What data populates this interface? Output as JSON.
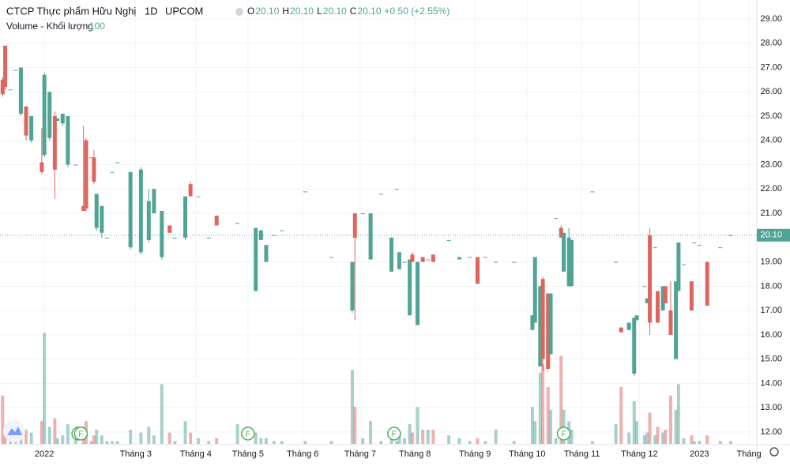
{
  "chart_data": {
    "type": "candlestick",
    "title": "CTCP Thực phẩm Hữu Nghị",
    "interval": "1D",
    "exchange": "UPCOM",
    "ohlc_legend": [
      {
        "key": "O",
        "label": "20.10"
      },
      {
        "key": "H",
        "label": "20.10"
      },
      {
        "key": "L",
        "label": "20.10"
      },
      {
        "key": "C",
        "label": "20.10"
      }
    ],
    "change": "+0.50 (+2.55%)",
    "volume_label": "Volume - Khối lượng",
    "volume_length": "100",
    "up_color": "#4fa496",
    "down_color": "#e0645c",
    "grid": true,
    "xlim": [
      0,
      290
    ],
    "ylim": [
      11.25,
      29.78
    ],
    "vlim": [
      0,
      100
    ],
    "yticks": [
      {
        "value": 12,
        "label": "12.00"
      },
      {
        "value": 13,
        "label": "13.00"
      },
      {
        "value": 14,
        "label": "14.00"
      },
      {
        "value": 15,
        "label": "15.00"
      },
      {
        "value": 16,
        "label": "16.00"
      },
      {
        "value": 17,
        "label": "17.00"
      },
      {
        "value": 18,
        "label": "18.00"
      },
      {
        "value": 19,
        "label": "19.00"
      },
      {
        "value": 20,
        "label": "20.00"
      },
      {
        "value": 21,
        "label": "21.00"
      },
      {
        "value": 22,
        "label": "22.00"
      },
      {
        "value": 23,
        "label": "23.00"
      },
      {
        "value": 24,
        "label": "24.00"
      },
      {
        "value": 25,
        "label": "25.00"
      },
      {
        "value": 26,
        "label": "26.00"
      },
      {
        "value": 27,
        "label": "27.00"
      },
      {
        "value": 28,
        "label": "28.00"
      },
      {
        "value": 29,
        "label": "29.00"
      }
    ],
    "xticks": [
      {
        "value": 17,
        "label": "2022"
      },
      {
        "value": 52,
        "label": "Tháng 3"
      },
      {
        "value": 75,
        "label": "Tháng 4"
      },
      {
        "value": 95,
        "label": "Tháng 5"
      },
      {
        "value": 116,
        "label": "Tháng 6"
      },
      {
        "value": 138,
        "label": "Tháng 7"
      },
      {
        "value": 159,
        "label": "Tháng 8"
      },
      {
        "value": 182,
        "label": "Tháng 9"
      },
      {
        "value": 202,
        "label": "Tháng 10"
      },
      {
        "value": 223,
        "label": "Tháng 11"
      },
      {
        "value": 245,
        "label": "Tháng 12"
      },
      {
        "value": 268,
        "label": "2023"
      },
      {
        "value": 287,
        "label": "Tháng"
      }
    ],
    "last_price": {
      "value": 20.1,
      "label": "20.10"
    },
    "events": [
      {
        "x": 30,
        "label": "F"
      },
      {
        "x": 31,
        "label": "F"
      },
      {
        "x": 95,
        "label": "F"
      },
      {
        "x": 151,
        "label": "F"
      },
      {
        "x": 216,
        "label": "F"
      }
    ],
    "x": [
      1,
      2,
      4,
      6,
      8,
      10,
      12,
      16,
      17,
      19,
      21,
      22,
      24,
      26,
      29,
      32,
      33,
      35,
      36,
      37,
      39,
      41,
      43,
      45,
      50,
      54,
      57,
      59,
      62,
      65,
      67,
      71,
      73,
      76,
      80,
      83,
      91,
      98,
      100,
      102,
      105,
      108,
      117,
      127,
      135,
      136,
      139,
      142,
      146,
      150,
      152,
      153,
      155,
      157,
      158,
      160,
      162,
      164,
      166,
      172,
      176,
      180,
      183,
      186,
      190,
      197,
      204,
      205,
      207,
      208,
      210,
      211,
      213,
      215,
      216,
      218,
      219,
      227,
      236,
      238,
      241,
      243,
      244,
      247,
      248,
      249,
      251,
      252,
      254,
      255,
      257,
      259,
      260,
      262,
      265,
      266,
      268,
      271,
      276,
      280
    ],
    "open": [
      26.5,
      27.9,
      26.1,
      26.9,
      25.1,
      25.4,
      24.0,
      23.1,
      23.4,
      24.1,
      25.0,
      24.8,
      24.7,
      23.0,
      23.0,
      21.3,
      24.0,
      23.3,
      23.3,
      20.4,
      20.2,
      20.0,
      22.7,
      23.1,
      19.6,
      19.4,
      19.9,
      21.0,
      19.2,
      20.5,
      20.0,
      20.0,
      22.2,
      21.7,
      20.0,
      20.9,
      20.6,
      17.8,
      19.9,
      19.0,
      20.1,
      20.3,
      21.9,
      19.2,
      17.0,
      21.0,
      21.0,
      19.1,
      21.8,
      18.6,
      22.0,
      18.7,
      19.0,
      16.8,
      19.3,
      16.4,
      19.2,
      19.1,
      19.3,
      19.9,
      19.1,
      19.2,
      19.2,
      19.2,
      19.0,
      19.0,
      16.2,
      16.5,
      14.7,
      18.3,
      17.7,
      15.2,
      20.8,
      20.4,
      18.6,
      18.0,
      18.0,
      21.9,
      19.0,
      16.3,
      16.2,
      14.4,
      16.6,
      18.0,
      17.3,
      20.1,
      19.6,
      17.8,
      17.0,
      18.0,
      17.0,
      15.0,
      17.8,
      18.9,
      18.2,
      19.8,
      19.7,
      19.0,
      19.6,
      20.1
    ],
    "high": [
      26.6,
      27.9,
      26.1,
      26.9,
      27.0,
      25.4,
      25.0,
      24.5,
      26.8,
      26.0,
      25.2,
      24.9,
      25.1,
      25.0,
      23.0,
      24.6,
      24.1,
      23.3,
      23.6,
      21.8,
      21.3,
      20.0,
      22.7,
      23.1,
      22.7,
      22.9,
      22.0,
      22.0,
      21.1,
      20.5,
      20.0,
      21.7,
      22.3,
      21.7,
      20.0,
      20.9,
      20.6,
      20.4,
      20.3,
      19.7,
      20.1,
      20.3,
      21.9,
      19.2,
      19.0,
      21.0,
      21.0,
      21.0,
      21.8,
      20.0,
      22.0,
      19.4,
      19.0,
      19.1,
      19.4,
      19.0,
      19.2,
      19.1,
      19.3,
      19.9,
      19.2,
      19.2,
      19.2,
      19.2,
      19.0,
      19.0,
      16.8,
      19.2,
      18.0,
      18.4,
      17.7,
      17.7,
      20.8,
      20.5,
      20.2,
      20.4,
      19.9,
      21.9,
      19.0,
      16.3,
      16.5,
      16.7,
      16.8,
      18.0,
      17.5,
      20.4,
      19.6,
      17.8,
      18.0,
      18.0,
      18.2,
      18.2,
      19.8,
      18.9,
      18.2,
      19.8,
      19.7,
      19.0,
      19.6,
      20.1
    ],
    "low": [
      25.8,
      26.1,
      26.1,
      26.9,
      25.0,
      24.0,
      23.9,
      22.6,
      23.3,
      24.0,
      21.6,
      24.8,
      24.6,
      22.9,
      23.0,
      21.1,
      21.1,
      23.3,
      22.2,
      20.3,
      20.0,
      20.0,
      22.7,
      23.1,
      19.5,
      19.3,
      19.8,
      21.0,
      19.1,
      20.2,
      20.0,
      19.9,
      21.7,
      21.7,
      20.0,
      20.5,
      20.6,
      17.8,
      19.9,
      19.0,
      20.1,
      20.3,
      21.9,
      19.2,
      16.9,
      16.6,
      21.0,
      19.1,
      21.8,
      18.6,
      22.0,
      18.7,
      19.0,
      16.8,
      19.0,
      16.4,
      19.0,
      19.1,
      19.0,
      19.9,
      19.1,
      19.2,
      18.1,
      19.2,
      19.0,
      19.0,
      16.2,
      16.5,
      14.7,
      14.5,
      14.5,
      15.2,
      20.8,
      20.0,
      18.6,
      18.0,
      18.0,
      21.9,
      19.0,
      16.1,
      16.2,
      14.3,
      16.6,
      18.0,
      17.3,
      16.0,
      19.6,
      16.5,
      17.0,
      17.3,
      16.0,
      15.0,
      17.8,
      18.9,
      17.0,
      19.8,
      19.7,
      17.2,
      19.6,
      20.1
    ],
    "close": [
      25.9,
      26.2,
      26.1,
      26.9,
      27.0,
      24.2,
      25.0,
      22.7,
      26.7,
      26.0,
      22.8,
      24.9,
      25.1,
      25.0,
      23.0,
      21.1,
      21.2,
      23.3,
      22.3,
      21.8,
      21.3,
      20.0,
      22.7,
      23.1,
      22.7,
      22.8,
      21.5,
      22.0,
      21.1,
      20.2,
      20.0,
      21.7,
      21.7,
      21.7,
      20.0,
      20.5,
      20.6,
      20.4,
      20.3,
      19.7,
      20.1,
      20.3,
      21.9,
      19.2,
      19.0,
      20.0,
      21.0,
      21.0,
      21.8,
      20.0,
      22.0,
      19.4,
      19.0,
      19.1,
      19.0,
      19.0,
      19.0,
      19.1,
      19.0,
      19.9,
      19.2,
      19.2,
      18.1,
      19.2,
      19.0,
      19.0,
      16.8,
      19.2,
      18.0,
      15.0,
      14.6,
      17.7,
      20.8,
      20.0,
      20.2,
      20.0,
      19.9,
      21.9,
      19.0,
      16.1,
      16.5,
      16.7,
      16.8,
      18.0,
      17.5,
      16.5,
      19.6,
      16.5,
      18.0,
      17.3,
      16.0,
      18.2,
      19.8,
      18.9,
      17.0,
      19.8,
      19.7,
      17.2,
      19.6,
      20.1
    ],
    "volume": [
      17,
      5,
      1,
      1,
      6,
      5,
      4,
      8,
      39,
      6,
      9,
      2,
      3,
      7,
      2,
      6,
      8,
      1,
      3,
      5,
      3,
      1,
      1,
      1,
      5,
      4,
      6,
      3,
      21,
      4,
      1,
      8,
      4,
      2,
      1,
      2,
      7,
      4,
      2,
      2,
      1,
      1,
      1,
      1,
      26,
      13,
      2,
      8,
      1,
      5,
      1,
      4,
      2,
      7,
      4,
      13,
      5,
      5,
      5,
      3,
      2,
      1,
      2,
      1,
      5,
      1,
      13,
      8,
      25,
      28,
      20,
      12,
      2,
      31,
      12,
      8,
      5,
      1,
      7,
      20,
      4,
      15,
      8,
      3,
      4,
      11,
      3,
      6,
      4,
      5,
      17,
      12,
      21,
      2,
      3,
      1,
      1,
      3,
      1,
      1
    ]
  }
}
